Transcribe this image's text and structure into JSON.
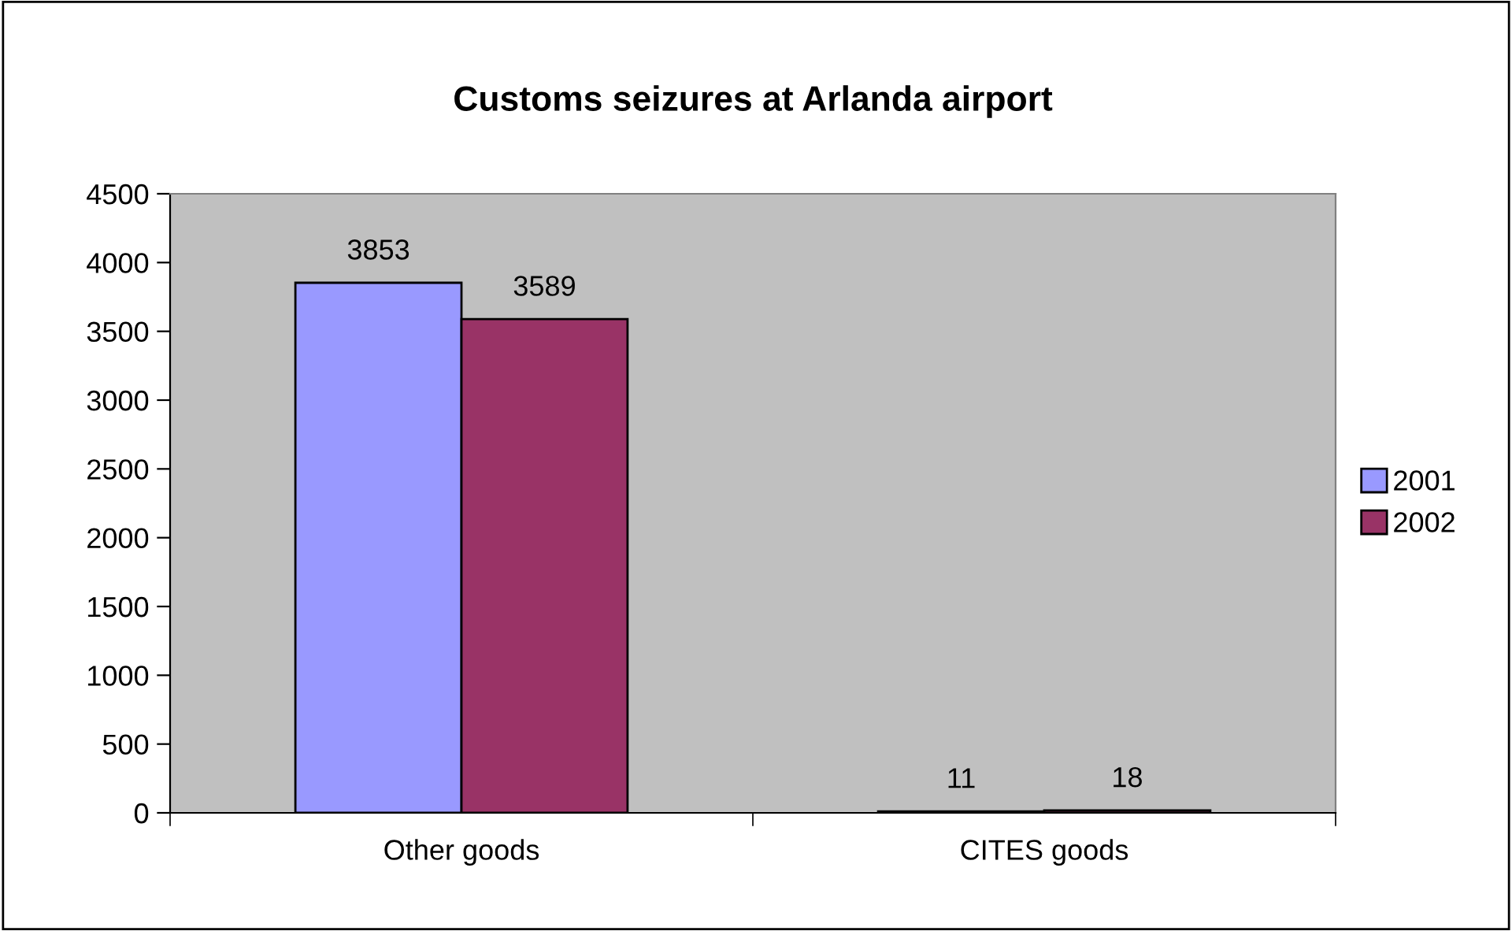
{
  "chart_data": {
    "type": "bar",
    "title": "Customs seizures at Arlanda airport",
    "categories": [
      "Other goods",
      "CITES goods"
    ],
    "series": [
      {
        "name": "2001",
        "color": "#9999ff",
        "values": [
          3853,
          11
        ]
      },
      {
        "name": "2002",
        "color": "#993366",
        "values": [
          3589,
          18
        ]
      }
    ],
    "ylim": [
      0,
      4500
    ],
    "yticks": [
      0,
      500,
      1000,
      1500,
      2000,
      2500,
      3000,
      3500,
      4000,
      4500
    ],
    "grid": false,
    "legend": "right",
    "data_labels": true
  }
}
